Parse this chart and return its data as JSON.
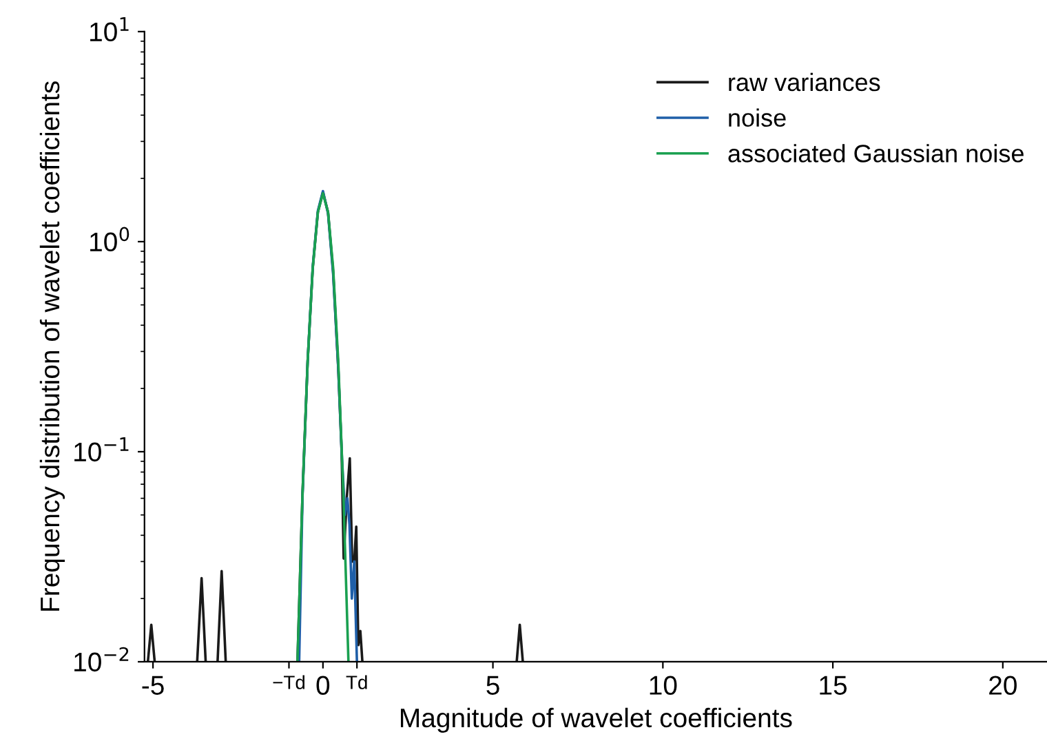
{
  "chart_data": {
    "type": "line",
    "xlabel": "Magnitude of wavelet coefficients",
    "ylabel": "Frequency distribution of wavelet coefficients",
    "log": "y",
    "xlim": [
      -5.25,
      21.3
    ],
    "ylim": [
      0.01,
      10
    ],
    "xticks": [
      -5,
      {
        "value": -1,
        "label": "−Td"
      },
      0,
      {
        "value": 1,
        "label": "Td"
      },
      5,
      10,
      15,
      20
    ],
    "yticks": [
      {
        "value": 0.01,
        "label": "10$^{−2}$"
      },
      {
        "value": 0.1,
        "label": "10$^{−1}$"
      },
      {
        "value": 1,
        "label": "10$^{0}$"
      },
      {
        "value": 10,
        "label": "10$^{1}$"
      }
    ],
    "grid": false,
    "legend": "top right",
    "series": [
      {
        "name": "raw variances",
        "color": "#1a1a1a",
        "x": [
          -5.15,
          -5.05,
          -4.95,
          -4.5,
          -3.7,
          -3.57,
          -3.45,
          -3.3,
          -3.1,
          -2.98,
          -2.86,
          -2.0,
          -0.75,
          -0.6,
          -0.45,
          -0.3,
          -0.15,
          0,
          0.15,
          0.3,
          0.45,
          0.55,
          0.61,
          0.7,
          0.79,
          0.86,
          0.92,
          0.98,
          1.04,
          1.1,
          1.16,
          3.0,
          5.7,
          5.79,
          5.88
        ],
        "values": [
          0.01,
          0.015,
          0.01,
          null,
          0.01,
          0.025,
          0.01,
          null,
          0.01,
          0.027,
          0.01,
          null,
          0.01,
          0.064,
          0.27,
          0.75,
          1.38,
          1.72,
          1.38,
          0.72,
          0.25,
          0.1,
          0.031,
          0.06,
          0.093,
          0.03,
          0.03,
          0.044,
          0.012,
          0.014,
          0.01,
          null,
          0.01,
          0.015,
          0.01
        ]
      },
      {
        "name": "noise",
        "color": "#1f5fa8",
        "x": [
          -0.7,
          -0.6,
          -0.45,
          -0.3,
          -0.15,
          0,
          0.15,
          0.3,
          0.45,
          0.55,
          0.65,
          0.72,
          0.78,
          0.85,
          0.92,
          1.0
        ],
        "values": [
          0.01,
          0.062,
          0.27,
          0.76,
          1.4,
          1.74,
          1.36,
          0.7,
          0.25,
          0.1,
          0.05,
          0.06,
          0.045,
          0.02,
          0.03,
          0.01
        ]
      },
      {
        "name": "associated Gaussian noise",
        "color": "#1aa050",
        "x": [
          -0.75,
          -0.6,
          -0.45,
          -0.3,
          -0.15,
          0,
          0.15,
          0.3,
          0.45,
          0.6,
          0.75
        ],
        "values": [
          0.01,
          0.064,
          0.27,
          0.75,
          1.38,
          1.7,
          1.38,
          0.75,
          0.27,
          0.064,
          0.01
        ]
      }
    ]
  }
}
